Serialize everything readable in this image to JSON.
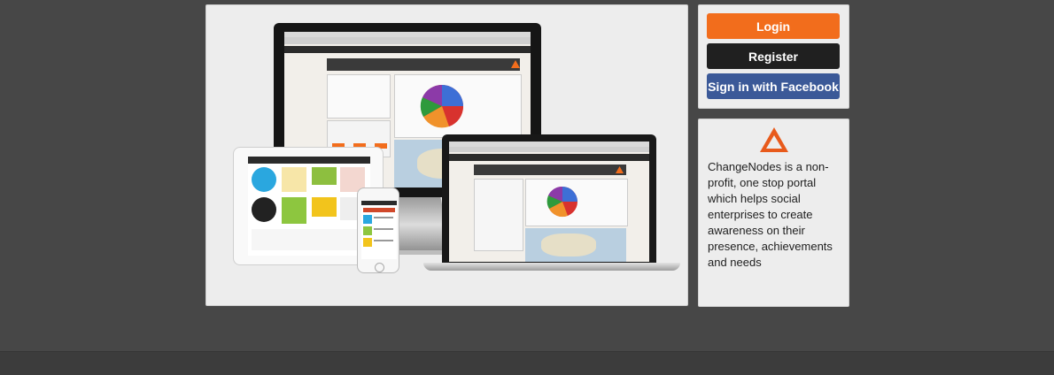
{
  "auth": {
    "login_label": "Login",
    "register_label": "Register",
    "facebook_label": "Sign in with Facebook"
  },
  "about": {
    "logo_icon": "changenodes-triangle-icon",
    "description": "ChangeNodes is a non-profit, one stop portal which helps social enterprises to create awareness on their presence, achievements and needs"
  },
  "hero": {
    "image": "changenodes-devices-mockup"
  },
  "colors": {
    "accent": "#f26d1c",
    "dark": "#202020",
    "facebook": "#3b5998",
    "page_bg": "#474747"
  }
}
